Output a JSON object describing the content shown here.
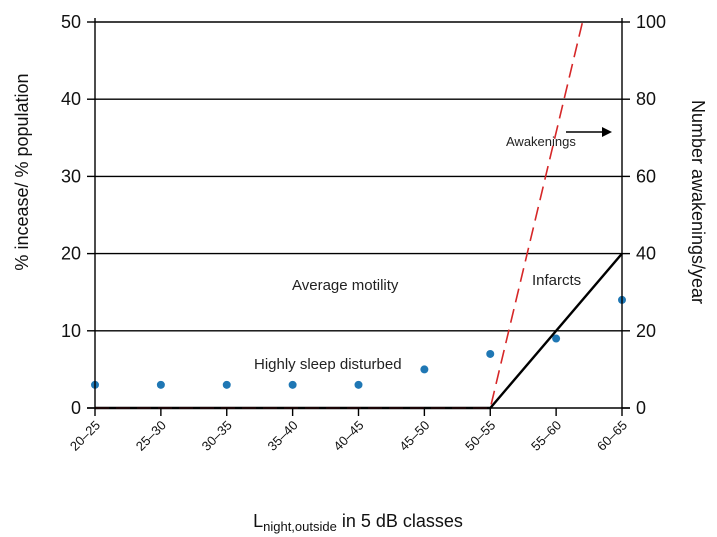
{
  "chart_data": {
    "type": "line",
    "categories": [
      "20–25",
      "25–30",
      "30–35",
      "35–40",
      "40–45",
      "45–50",
      "50–55",
      "55–60",
      "60–65"
    ],
    "y_left": {
      "label": "% incease/ % population",
      "ylim": [
        0,
        50
      ],
      "ticks": [
        "0",
        "10",
        "20",
        "30",
        "40",
        "50"
      ]
    },
    "y_right": {
      "label": "Number awakenings/year",
      "ylim": [
        0,
        100
      ],
      "ticks": [
        "0",
        "20",
        "40",
        "60",
        "80",
        "100"
      ]
    },
    "xlabel": {
      "main": "L",
      "sub": "night,outside",
      "rest": " in 5 dB classes"
    },
    "grid": "horizontal",
    "series": [
      {
        "name": "Highly sleep disturbed",
        "kind": "scatter",
        "axis": "left",
        "color": "#1f77b4",
        "points": [
          [
            0,
            3
          ],
          [
            1,
            3
          ],
          [
            2,
            3
          ],
          [
            3,
            3
          ],
          [
            4,
            3
          ],
          [
            5,
            5
          ],
          [
            6,
            7
          ],
          [
            7,
            9
          ],
          [
            8,
            14
          ]
        ]
      },
      {
        "name": "Infarcts",
        "kind": "line",
        "axis": "left",
        "color": "#000000",
        "points": [
          [
            0,
            0
          ],
          [
            6,
            0
          ],
          [
            8,
            20
          ]
        ]
      },
      {
        "name": "Awakenings",
        "kind": "dashed-line",
        "axis": "left",
        "color": "#d62728",
        "points": [
          [
            0,
            0
          ],
          [
            6,
            0
          ],
          [
            7.4,
            50
          ]
        ]
      }
    ],
    "annotations": {
      "average_motility": "Average motility",
      "infarcts": "Infarcts",
      "highly_sleep_disturbed": "Highly sleep disturbed",
      "awakenings": "Awakenings"
    }
  }
}
